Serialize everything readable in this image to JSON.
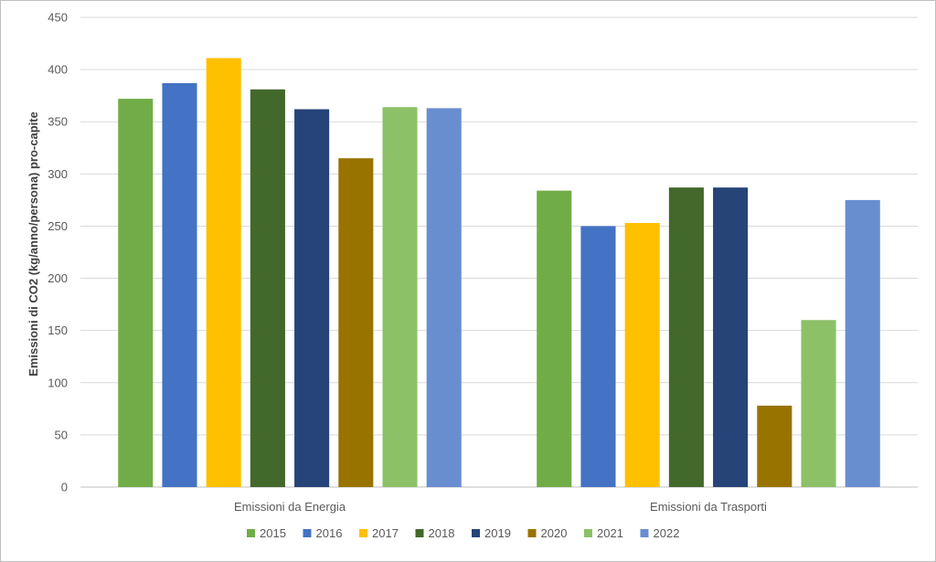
{
  "chart_data": {
    "type": "bar",
    "title": "",
    "xlabel": "",
    "ylabel": "Emissioni di CO2 (kg/anno/persona) pro-capite",
    "ylim": [
      0,
      450
    ],
    "yticks": [
      0,
      50,
      100,
      150,
      200,
      250,
      300,
      350,
      400,
      450
    ],
    "grid": true,
    "legend_position": "bottom",
    "categories": [
      "Emissioni da Energia",
      "Emissioni da Trasporti"
    ],
    "series": [
      {
        "name": "2015",
        "color": "#70ad47",
        "values": [
          372,
          284
        ]
      },
      {
        "name": "2016",
        "color": "#4472c4",
        "values": [
          387,
          250
        ]
      },
      {
        "name": "2017",
        "color": "#ffc000",
        "values": [
          411,
          253
        ]
      },
      {
        "name": "2018",
        "color": "#43682b",
        "values": [
          381,
          287
        ]
      },
      {
        "name": "2019",
        "color": "#264478",
        "values": [
          362,
          287
        ]
      },
      {
        "name": "2020",
        "color": "#997300",
        "values": [
          315,
          78
        ]
      },
      {
        "name": "2021",
        "color": "#8cc168",
        "values": [
          364,
          160
        ]
      },
      {
        "name": "2022",
        "color": "#698ed0",
        "values": [
          363,
          275
        ]
      }
    ]
  }
}
